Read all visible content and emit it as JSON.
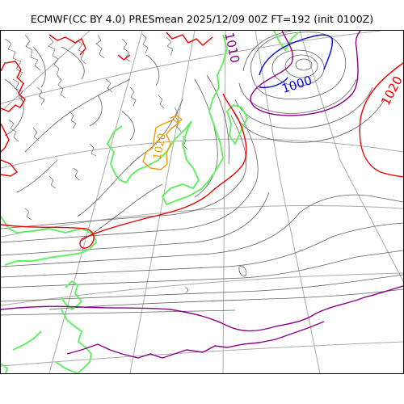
{
  "title": "ECMWF(CC BY 4.0) PRESmean 2025/12/09 00Z FT=192 (init 0100Z)",
  "contour_labels": {
    "low": "1000",
    "mid": "1010",
    "high": "1020",
    "land": "1020"
  },
  "colors": {
    "isobar": "#606060",
    "grid": "#aaaaaa",
    "coastline": "#66ee66",
    "isobar_1000": "#0000dd",
    "isobar_1010": "#8b008b",
    "isobar_1020": "#ee0000",
    "isobar_1030": "#f0a000"
  }
}
